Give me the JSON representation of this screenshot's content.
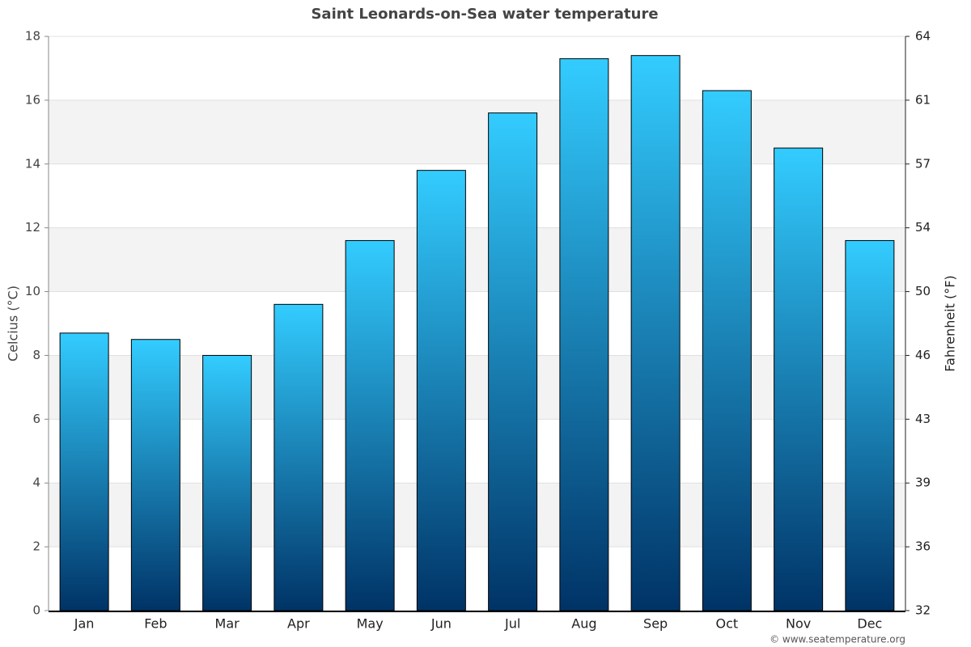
{
  "chart_data": {
    "type": "bar",
    "title": "Saint Leonards-on-Sea water temperature",
    "categories": [
      "Jan",
      "Feb",
      "Mar",
      "Apr",
      "May",
      "Jun",
      "Jul",
      "Aug",
      "Sep",
      "Oct",
      "Nov",
      "Dec"
    ],
    "values": [
      8.7,
      8.5,
      8.0,
      9.6,
      11.6,
      13.8,
      15.6,
      17.3,
      17.4,
      16.3,
      14.5,
      11.6
    ],
    "gradient": [
      "#33ccff",
      "#003366"
    ],
    "ylabel": "Celcius (°C)",
    "y2label": "Fahrenheit (°F)",
    "ylim": [
      0,
      18
    ],
    "yticks": [
      0,
      2,
      4,
      6,
      8,
      10,
      12,
      14,
      16,
      18
    ],
    "y2lim": [
      32,
      64.4
    ],
    "y2ticks": [
      32,
      {
        "value": 35.6,
        "label": "36"
      },
      {
        "value": 39.2,
        "label": "39"
      },
      {
        "value": 42.8,
        "label": "43"
      },
      {
        "value": 46.4,
        "label": "46"
      },
      50,
      {
        "value": 53.6,
        "label": "54"
      },
      {
        "value": 57.2,
        "label": "57"
      },
      {
        "value": 60.8,
        "label": "61"
      },
      {
        "value": 64.4,
        "label": "64"
      }
    ],
    "grid": true,
    "source": "© www.seatemperature.org"
  }
}
